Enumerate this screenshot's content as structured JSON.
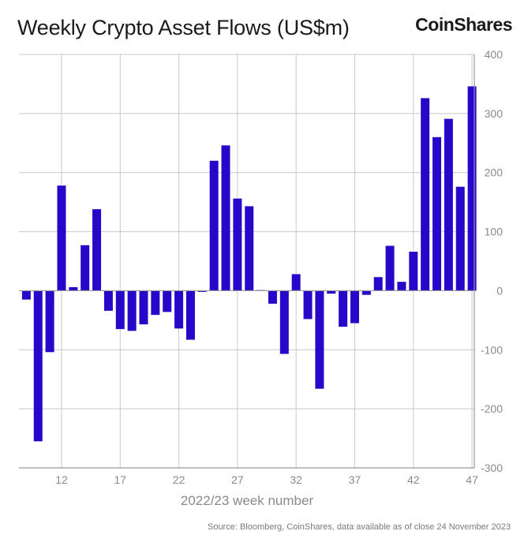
{
  "title": "Weekly Crypto Asset Flows (US$m)",
  "brand": "CoinShares",
  "source": "Source: Bloomberg, CoinShares, data available as of close 24 November 2023",
  "colors": {
    "bar": "#2707c9",
    "grid": "#c8c8c8",
    "axis": "#9a9a9a",
    "text": "#8a8a8a"
  },
  "chart_data": {
    "type": "bar",
    "title": "Weekly Crypto Asset Flows (US$m)",
    "xlabel": "2022/23 week number",
    "ylabel": "",
    "ylim": [
      -300,
      400
    ],
    "yticks": [
      400,
      300,
      200,
      100,
      0,
      -100,
      -200,
      -300
    ],
    "xticks": [
      12,
      17,
      22,
      27,
      32,
      37,
      42,
      47
    ],
    "grid": true,
    "y_axis_side": "right",
    "categories": [
      9,
      10,
      11,
      12,
      13,
      14,
      15,
      16,
      17,
      18,
      19,
      20,
      21,
      22,
      23,
      24,
      25,
      26,
      27,
      28,
      29,
      30,
      31,
      32,
      33,
      34,
      35,
      36,
      37,
      38,
      39,
      40,
      41,
      42,
      43,
      44,
      45,
      46,
      47
    ],
    "values": [
      -15,
      -255,
      -104,
      178,
      6,
      77,
      138,
      -34,
      -65,
      -68,
      -57,
      -41,
      -36,
      -64,
      -83,
      -2,
      220,
      246,
      156,
      143,
      1,
      -22,
      -107,
      28,
      -48,
      -166,
      -5,
      -61,
      -55,
      -7,
      23,
      76,
      15,
      66,
      326,
      260,
      291,
      176,
      346
    ]
  }
}
